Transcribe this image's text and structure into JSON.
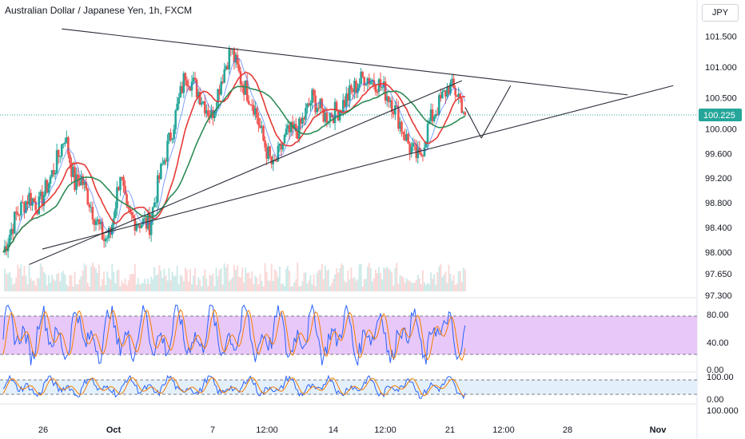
{
  "header": {
    "title": "Australian Dollar / Japanese Yen, 1h, FXCM",
    "currency_button": "JPY"
  },
  "colors": {
    "up_candle": "#26a69a",
    "down_candle": "#ef5350",
    "ma_fast": "#e53935",
    "ma_slow": "#2e8b57",
    "price_line": "#26a69a",
    "osc_k": "#2962ff",
    "osc_d": "#f57c00",
    "band_fill": "#e8c8f8",
    "band_fill_2": "#e3f0fb",
    "trendline": "#2a2e39"
  },
  "chart_data": [
    {
      "type": "candlestick",
      "title": "Australian Dollar / Japanese Yen, 1h, FXCM",
      "x_ticks": [
        "26",
        "Oct",
        "7",
        "12:00",
        "14",
        "12:00",
        "21",
        "12:00",
        "28",
        "Nov"
      ],
      "y_ticks": [
        "101.500",
        "101.000",
        "100.500",
        "100.000",
        "99.600",
        "99.200",
        "98.800",
        "98.400",
        "98.000",
        "97.650",
        "97.300"
      ],
      "ylim": [
        97.3,
        101.7
      ],
      "last_price": "100.225",
      "last_price_value": 100.225,
      "anchors": [
        {
          "t": 0,
          "v": 98.0
        },
        {
          "t": 4,
          "v": 98.6
        },
        {
          "t": 8,
          "v": 98.9
        },
        {
          "t": 11,
          "v": 98.75
        },
        {
          "t": 16,
          "v": 99.4
        },
        {
          "t": 19,
          "v": 99.9
        },
        {
          "t": 22,
          "v": 99.1
        },
        {
          "t": 24,
          "v": 99.2
        },
        {
          "t": 28,
          "v": 98.6
        },
        {
          "t": 31,
          "v": 98.2
        },
        {
          "t": 33,
          "v": 98.3
        },
        {
          "t": 36,
          "v": 99.3
        },
        {
          "t": 38,
          "v": 98.6
        },
        {
          "t": 41,
          "v": 98.5
        },
        {
          "t": 45,
          "v": 98.45
        },
        {
          "t": 48,
          "v": 99.2
        },
        {
          "t": 52,
          "v": 100.0
        },
        {
          "t": 56,
          "v": 100.9
        },
        {
          "t": 60,
          "v": 100.6
        },
        {
          "t": 64,
          "v": 100.2
        },
        {
          "t": 67,
          "v": 100.8
        },
        {
          "t": 70,
          "v": 101.3
        },
        {
          "t": 73,
          "v": 100.8
        },
        {
          "t": 77,
          "v": 100.4
        },
        {
          "t": 80,
          "v": 99.8
        },
        {
          "t": 83,
          "v": 99.35
        },
        {
          "t": 87,
          "v": 99.9
        },
        {
          "t": 91,
          "v": 100.0
        },
        {
          "t": 95,
          "v": 100.5
        },
        {
          "t": 99,
          "v": 100.2
        },
        {
          "t": 103,
          "v": 100.3
        },
        {
          "t": 107,
          "v": 100.6
        },
        {
          "t": 111,
          "v": 100.85
        },
        {
          "t": 115,
          "v": 100.75
        },
        {
          "t": 119,
          "v": 100.5
        },
        {
          "t": 122,
          "v": 100.1
        },
        {
          "t": 125,
          "v": 99.7
        },
        {
          "t": 128,
          "v": 99.5
        },
        {
          "t": 131,
          "v": 100.1
        },
        {
          "t": 134,
          "v": 100.4
        },
        {
          "t": 137,
          "v": 100.7
        },
        {
          "t": 140,
          "v": 100.55
        },
        {
          "t": 142,
          "v": 100.225
        }
      ],
      "drawn_lines": [
        {
          "name": "upper-trendline",
          "t1": 18,
          "v1": 101.62,
          "t2": 192,
          "v2": 100.55
        },
        {
          "name": "lower-trendline",
          "t1": 12,
          "v1": 98.05,
          "t2": 206,
          "v2": 100.7
        },
        {
          "name": "rising-channel-line",
          "t1": 8,
          "v1": 97.8,
          "t2": 141,
          "v2": 100.78
        },
        {
          "name": "projection-down",
          "t1": 142,
          "v1": 100.35,
          "t2": 147,
          "v2": 99.85
        },
        {
          "name": "projection-up",
          "t1": 147,
          "v1": 99.85,
          "t2": 156,
          "v2": 100.7
        }
      ]
    },
    {
      "type": "oscillator",
      "y_ticks": [
        "80.00",
        "40.00",
        "0.00"
      ],
      "ylim": [
        0,
        100
      ],
      "band": [
        20,
        80
      ]
    },
    {
      "type": "oscillator",
      "y_ticks": [
        "100.00",
        "0.00",
        "100.000"
      ],
      "ylim": [
        0,
        100
      ],
      "band": [
        20,
        80
      ]
    }
  ]
}
